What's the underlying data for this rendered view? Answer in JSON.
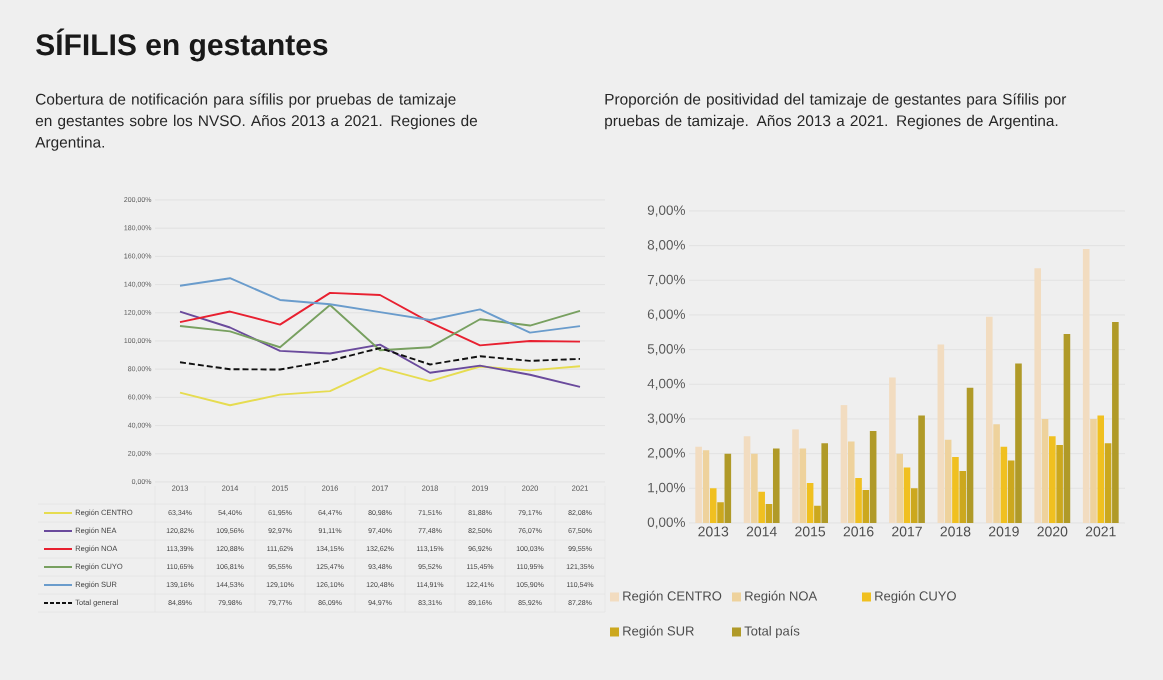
{
  "chart_data": [
    {
      "type": "line",
      "title": "SÍFILIS en gestantes",
      "subtitle": "Cobertura de notificación para sífilis por pruebas de tamizaje en gestantes sobre los NVSO. Años 2013 a 2021. Regiones de Argentina.",
      "categories": [
        "2013",
        "2014",
        "2015",
        "2016",
        "2017",
        "2018",
        "2019",
        "2020",
        "2021"
      ],
      "ylim": [
        0,
        200
      ],
      "yticks": [
        {
          "value": 0,
          "label": "0,00%"
        },
        {
          "value": 20,
          "label": "20,00%"
        },
        {
          "value": 40,
          "label": "40,00%"
        },
        {
          "value": 60,
          "label": "60,00%"
        },
        {
          "value": 80,
          "label": "80,00%"
        },
        {
          "value": 100,
          "label": "100,00%"
        },
        {
          "value": 120,
          "label": "120,00%"
        },
        {
          "value": 140,
          "label": "140,00%"
        },
        {
          "value": 160,
          "label": "160,00%"
        },
        {
          "value": 180,
          "label": "180,00%"
        },
        {
          "value": 200,
          "label": "200,00%"
        }
      ],
      "grid": "y",
      "legend": "bottom",
      "series": [
        {
          "name": "Región CENTRO",
          "color": "#e6dc50",
          "values": [
            63.34,
            54.4,
            61.95,
            64.47,
            80.98,
            71.51,
            81.88,
            79.17,
            82.08
          ],
          "value_labels": [
            "63,34%",
            "54,40%",
            "61,95%",
            "64,47%",
            "80,98%",
            "71,51%",
            "81,88%",
            "79,17%",
            "82,08%"
          ]
        },
        {
          "name": "Región NEA",
          "color": "#6a4a9c",
          "values": [
            120.82,
            109.56,
            92.97,
            91.11,
            97.4,
            77.48,
            82.5,
            76.07,
            67.5
          ],
          "value_labels": [
            "120,82%",
            "109,56%",
            "92,97%",
            "91,11%",
            "97,40%",
            "77,48%",
            "82,50%",
            "76,07%",
            "67,50%"
          ]
        },
        {
          "name": "Región NOA",
          "color": "#e82030",
          "values": [
            113.39,
            120.88,
            111.62,
            134.15,
            132.62,
            113.15,
            96.92,
            100.03,
            99.55
          ],
          "value_labels": [
            "113,39%",
            "120,88%",
            "111,62%",
            "134,15%",
            "132,62%",
            "113,15%",
            "96,92%",
            "100,03%",
            "99,55%"
          ]
        },
        {
          "name": "Región CUYO",
          "color": "#78a060",
          "values": [
            110.65,
            106.81,
            95.55,
            125.47,
            93.48,
            95.52,
            115.45,
            110.95,
            121.35
          ],
          "value_labels": [
            "110,65%",
            "106,81%",
            "95,55%",
            "125,47%",
            "93,48%",
            "95,52%",
            "115,45%",
            "110,95%",
            "121,35%"
          ]
        },
        {
          "name": "Región SUR",
          "color": "#6a9ccc",
          "values": [
            139.16,
            144.53,
            129.1,
            126.1,
            120.48,
            114.91,
            122.41,
            105.9,
            110.54
          ],
          "value_labels": [
            "139,16%",
            "144,53%",
            "129,10%",
            "126,10%",
            "120,48%",
            "114,91%",
            "122,41%",
            "105,90%",
            "110,54%"
          ]
        },
        {
          "name": "Total general",
          "color": "#111111",
          "line_style": "dashed",
          "values": [
            84.89,
            79.98,
            79.77,
            86.09,
            94.97,
            83.31,
            89.16,
            85.92,
            87.28
          ],
          "value_labels": [
            "84,89%",
            "79,98%",
            "79,77%",
            "86,09%",
            "94,97%",
            "83,31%",
            "89,16%",
            "85,92%",
            "87,28%"
          ]
        }
      ]
    },
    {
      "type": "bar",
      "subtitle": "Proporción de positividad del tamizaje de gestantes para Sífilis por pruebas de tamizaje. Años 2013 a 2021. Regiones de Argentina.",
      "categories": [
        "2013",
        "2014",
        "2015",
        "2016",
        "2017",
        "2018",
        "2019",
        "2020",
        "2021"
      ],
      "ylim": [
        0,
        9
      ],
      "yticks": [
        {
          "value": 0,
          "label": "0,00%"
        },
        {
          "value": 1,
          "label": "1,00%"
        },
        {
          "value": 2,
          "label": "2,00%"
        },
        {
          "value": 3,
          "label": "3,00%"
        },
        {
          "value": 4,
          "label": "4,00%"
        },
        {
          "value": 5,
          "label": "5,00%"
        },
        {
          "value": 6,
          "label": "6,00%"
        },
        {
          "value": 7,
          "label": "7,00%"
        },
        {
          "value": 8,
          "label": "8,00%"
        },
        {
          "value": 9,
          "label": "9,00%"
        }
      ],
      "grid": "y",
      "legend": "bottom",
      "series": [
        {
          "name": "Región CENTRO",
          "color": "#f2dcc0",
          "values": [
            2.2,
            2.5,
            2.7,
            3.4,
            4.2,
            5.15,
            5.95,
            7.35,
            7.9
          ]
        },
        {
          "name": "Región NOA",
          "color": "#eed29c",
          "values": [
            2.1,
            2.0,
            2.15,
            2.35,
            2.0,
            2.4,
            2.85,
            3.0,
            3.0
          ]
        },
        {
          "name": "Región CUYO",
          "color": "#f0c020",
          "values": [
            1.0,
            0.9,
            1.15,
            1.3,
            1.6,
            1.9,
            2.2,
            2.5,
            3.1
          ]
        },
        {
          "name": "Región SUR",
          "color": "#cca81e",
          "values": [
            0.6,
            0.55,
            0.5,
            0.95,
            1.0,
            1.5,
            1.8,
            2.25,
            2.3
          ]
        },
        {
          "name": "Total país",
          "color": "#b09a28",
          "values": [
            2.0,
            2.15,
            2.3,
            2.65,
            3.1,
            3.9,
            4.6,
            5.45,
            5.8
          ]
        }
      ]
    }
  ]
}
